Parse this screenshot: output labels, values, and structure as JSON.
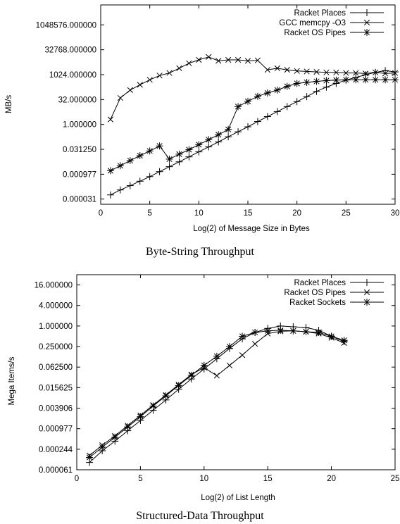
{
  "chart_data": [
    {
      "type": "line",
      "title": "Byte-String Throughput",
      "xlabel": "Log(2) of Message Size in Bytes",
      "ylabel": "MB/s",
      "xscale": "linear",
      "yscale": "log2",
      "xlim": [
        0,
        30
      ],
      "ylim": [
        1.5e-05,
        16777216
      ],
      "xticks": [
        0,
        5,
        10,
        15,
        20,
        25,
        30
      ],
      "yticks": [
        {
          "value": 3.1e-05,
          "label": "0.000031"
        },
        {
          "value": 0.000977,
          "label": "0.000977"
        },
        {
          "value": 0.03125,
          "label": "0.031250"
        },
        {
          "value": 1,
          "label": "1.000000"
        },
        {
          "value": 32,
          "label": "32.000000"
        },
        {
          "value": 1024,
          "label": "1024.000000"
        },
        {
          "value": 32768,
          "label": "32768.000000"
        },
        {
          "value": 1048576,
          "label": "1048576.000000"
        }
      ],
      "legend_position": "top-right",
      "series": [
        {
          "name": "Racket Places",
          "marker": "plus",
          "x": [
            1,
            2,
            3,
            4,
            5,
            6,
            7,
            8,
            9,
            10,
            11,
            12,
            13,
            14,
            15,
            16,
            17,
            18,
            19,
            20,
            21,
            22,
            23,
            24,
            25,
            26,
            27,
            28,
            29,
            30
          ],
          "y": [
            5.5e-05,
            0.00011,
            0.0002,
            0.00037,
            0.0007,
            0.0014,
            0.0028,
            0.0055,
            0.011,
            0.022,
            0.044,
            0.088,
            0.18,
            0.36,
            0.72,
            1.5,
            3,
            6,
            12,
            24,
            48,
            100,
            180,
            300,
            480,
            700,
            1000,
            1400,
            1800,
            1500
          ]
        },
        {
          "name": "GCC memcpy -O3",
          "marker": "cross",
          "x": [
            1,
            2,
            3,
            4,
            5,
            6,
            7,
            8,
            9,
            10,
            11,
            12,
            13,
            14,
            15,
            16,
            17,
            18,
            19,
            20,
            21,
            22,
            23,
            24,
            25,
            26,
            27,
            28,
            29,
            30
          ],
          "y": [
            2,
            40,
            120,
            250,
            500,
            900,
            1300,
            2500,
            5000,
            8000,
            12000,
            7000,
            8000,
            8000,
            7000,
            7500,
            2000,
            2500,
            2000,
            1700,
            1600,
            1500,
            1400,
            1400,
            1300,
            1300,
            1200,
            1400,
            1200,
            1300
          ]
        },
        {
          "name": "Racket OS Pipes",
          "marker": "star",
          "x": [
            1,
            2,
            3,
            4,
            5,
            6,
            7,
            8,
            9,
            10,
            11,
            12,
            13,
            14,
            15,
            16,
            17,
            18,
            19,
            20,
            21,
            22,
            23,
            24,
            25,
            26,
            27,
            28,
            29,
            30
          ],
          "y": [
            0.0016,
            0.0032,
            0.0065,
            0.013,
            0.025,
            0.05,
            0.008,
            0.016,
            0.03,
            0.06,
            0.12,
            0.24,
            0.5,
            12,
            25,
            50,
            80,
            120,
            200,
            300,
            350,
            400,
            450,
            480,
            500,
            500,
            500,
            500,
            500,
            500
          ]
        }
      ]
    },
    {
      "type": "line",
      "title": "Structured-Data Throughput",
      "xlabel": "Log(2) of List Length",
      "ylabel": "Mega Items/s",
      "xscale": "linear",
      "yscale": "log2",
      "xlim": [
        0,
        25
      ],
      "ylim": [
        6.1e-05,
        32
      ],
      "xticks": [
        0,
        5,
        10,
        15,
        20,
        25
      ],
      "yticks": [
        {
          "value": 6.1e-05,
          "label": "0.000061"
        },
        {
          "value": 0.000244,
          "label": "0.000244"
        },
        {
          "value": 0.000977,
          "label": "0.000977"
        },
        {
          "value": 0.003906,
          "label": "0.003906"
        },
        {
          "value": 0.015625,
          "label": "0.015625"
        },
        {
          "value": 0.0625,
          "label": "0.062500"
        },
        {
          "value": 0.25,
          "label": "0.250000"
        },
        {
          "value": 1,
          "label": "1.000000"
        },
        {
          "value": 4,
          "label": "4.000000"
        },
        {
          "value": 16,
          "label": "16.000000"
        }
      ],
      "legend_position": "top-right",
      "series": [
        {
          "name": "Racket Places",
          "marker": "plus",
          "x": [
            1,
            2,
            3,
            4,
            5,
            6,
            7,
            8,
            9,
            10,
            11,
            12,
            13,
            14,
            15,
            16,
            17,
            18,
            19,
            20,
            21
          ],
          "y": [
            0.0001,
            0.00022,
            0.00042,
            0.00085,
            0.0017,
            0.0034,
            0.0068,
            0.014,
            0.028,
            0.055,
            0.11,
            0.22,
            0.42,
            0.65,
            0.85,
            1.0,
            0.95,
            0.9,
            0.75,
            0.5,
            0.35
          ]
        },
        {
          "name": "Racket OS Pipes",
          "marker": "cross",
          "x": [
            1,
            2,
            3,
            4,
            5,
            6,
            7,
            8,
            9,
            10,
            11,
            12,
            13,
            14,
            15,
            16,
            17,
            18,
            19,
            20,
            21
          ],
          "y": [
            0.00016,
            0.00032,
            0.0006,
            0.0012,
            0.0024,
            0.0048,
            0.0095,
            0.019,
            0.038,
            0.06,
            0.035,
            0.07,
            0.14,
            0.3,
            0.6,
            0.7,
            0.72,
            0.68,
            0.6,
            0.45,
            0.32
          ]
        },
        {
          "name": "Racket Sockets",
          "marker": "star",
          "x": [
            1,
            2,
            3,
            4,
            5,
            6,
            7,
            8,
            9,
            10,
            11,
            12,
            13,
            14,
            15,
            16,
            17,
            18,
            19,
            20,
            21
          ],
          "y": [
            0.00014,
            0.00028,
            0.00055,
            0.0011,
            0.0022,
            0.0045,
            0.009,
            0.018,
            0.036,
            0.07,
            0.13,
            0.25,
            0.5,
            0.65,
            0.72,
            0.75,
            0.72,
            0.68,
            0.65,
            0.5,
            0.38
          ]
        }
      ]
    }
  ]
}
